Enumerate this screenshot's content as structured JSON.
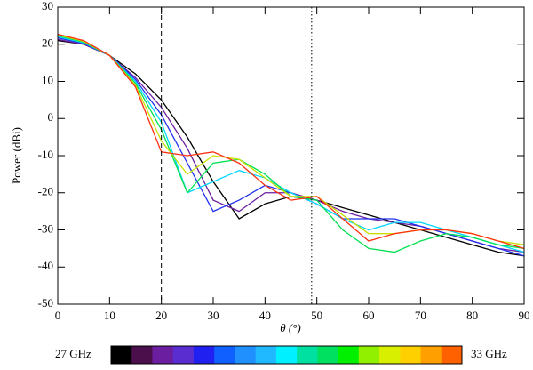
{
  "chart_data": {
    "type": "line",
    "x_label": "θ (°)",
    "y_label": "Power (dBi)",
    "x": [
      0,
      5,
      10,
      15,
      20,
      25,
      30,
      35,
      40,
      45,
      50,
      55,
      60,
      65,
      70,
      75,
      80,
      85,
      90
    ],
    "series": [
      {
        "color": "#000000",
        "values": [
          21,
          20,
          17,
          12,
          5,
          -5,
          -17,
          -27,
          -23,
          -21,
          -22,
          -24,
          -26,
          -28,
          -30,
          -32,
          -34,
          -36,
          -37
        ]
      },
      {
        "color": "#6b1fa0",
        "values": [
          21.3,
          20,
          17,
          11,
          3,
          -8,
          -22,
          -25,
          -20,
          -20,
          -22,
          -25,
          -27,
          -28,
          -29,
          -31,
          -33,
          -35,
          -36
        ]
      },
      {
        "color": "#2030f0",
        "values": [
          21.7,
          20.2,
          17,
          10.5,
          1,
          -12,
          -25,
          -22,
          -18,
          -20,
          -23,
          -27,
          -27,
          -27,
          -29,
          -31,
          -33,
          -35,
          -37
        ]
      },
      {
        "color": "#00d8ff",
        "values": [
          22,
          20.4,
          17,
          10,
          -1,
          -20,
          -17,
          -14,
          -16,
          -20,
          -23,
          -27,
          -30,
          -28,
          -28,
          -30,
          -32,
          -34,
          -36
        ]
      },
      {
        "color": "#00e050",
        "values": [
          22.3,
          20.6,
          17,
          9.5,
          -3,
          -20,
          -12,
          -11,
          -15,
          -21,
          -22,
          -30,
          -35,
          -36,
          -33,
          -31,
          -32,
          -34,
          -35
        ]
      },
      {
        "color": "#c8e000",
        "values": [
          22.5,
          20.8,
          17,
          9,
          -6,
          -15,
          -10,
          -11,
          -16,
          -21,
          -21,
          -26,
          -31,
          -31,
          -30,
          -30,
          -31,
          -33,
          -34
        ]
      },
      {
        "color": "#ff3010",
        "values": [
          22.7,
          21,
          17,
          8.5,
          -9,
          -10,
          -9,
          -12,
          -18,
          -22,
          -21,
          -27,
          -33,
          -31,
          -30,
          -30,
          -31,
          -33,
          -35
        ]
      }
    ],
    "xlim": [
      0,
      90
    ],
    "xticks": [
      0,
      10,
      20,
      30,
      40,
      50,
      60,
      70,
      80,
      90
    ],
    "ylim": [
      -50,
      30
    ],
    "yticks": [
      -50,
      -40,
      -30,
      -20,
      -10,
      0,
      10,
      20,
      30
    ],
    "reference_lines": [
      {
        "x": 20,
        "style": "dashed"
      },
      {
        "x": 49,
        "style": "dotted"
      }
    ],
    "colorbar": {
      "min_label": "27 GHz",
      "max_label": "33 GHz",
      "colors": [
        "#000000",
        "#4b0f4b",
        "#6b1fa0",
        "#5a2dd0",
        "#2020f0",
        "#1060ff",
        "#2090ff",
        "#20b8ff",
        "#00f0ff",
        "#00e0a0",
        "#00e060",
        "#00f000",
        "#90f000",
        "#d8f000",
        "#ffd000",
        "#ffa000",
        "#ff6000"
      ]
    }
  }
}
